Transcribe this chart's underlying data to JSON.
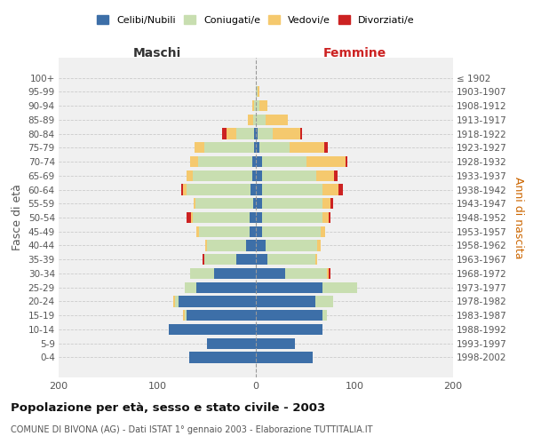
{
  "age_groups": [
    "0-4",
    "5-9",
    "10-14",
    "15-19",
    "20-24",
    "25-29",
    "30-34",
    "35-39",
    "40-44",
    "45-49",
    "50-54",
    "55-59",
    "60-64",
    "65-69",
    "70-74",
    "75-79",
    "80-84",
    "85-89",
    "90-94",
    "95-99",
    "100+"
  ],
  "birth_years": [
    "1998-2002",
    "1993-1997",
    "1988-1992",
    "1983-1987",
    "1978-1982",
    "1973-1977",
    "1968-1972",
    "1963-1967",
    "1958-1962",
    "1953-1957",
    "1948-1952",
    "1943-1947",
    "1938-1942",
    "1933-1937",
    "1928-1932",
    "1923-1927",
    "1918-1922",
    "1913-1917",
    "1908-1912",
    "1903-1907",
    "≤ 1902"
  ],
  "male": {
    "celibi": [
      68,
      50,
      88,
      70,
      78,
      60,
      42,
      20,
      10,
      6,
      6,
      3,
      5,
      4,
      4,
      2,
      2,
      0,
      0,
      0,
      0
    ],
    "coniugati": [
      0,
      0,
      0,
      2,
      4,
      12,
      25,
      32,
      40,
      52,
      58,
      58,
      65,
      60,
      55,
      50,
      18,
      3,
      2,
      0,
      0
    ],
    "vedovi": [
      0,
      0,
      0,
      2,
      2,
      0,
      0,
      0,
      1,
      2,
      2,
      2,
      4,
      6,
      8,
      10,
      10,
      5,
      2,
      0,
      0
    ],
    "divorziati": [
      0,
      0,
      0,
      0,
      0,
      0,
      0,
      2,
      0,
      0,
      4,
      0,
      2,
      0,
      0,
      0,
      4,
      0,
      0,
      0,
      0
    ]
  },
  "female": {
    "nubili": [
      58,
      40,
      68,
      68,
      60,
      68,
      30,
      12,
      10,
      6,
      6,
      6,
      6,
      6,
      6,
      4,
      2,
      0,
      0,
      0,
      0
    ],
    "coniugate": [
      0,
      0,
      0,
      4,
      18,
      35,
      42,
      48,
      52,
      60,
      62,
      62,
      62,
      55,
      45,
      30,
      15,
      10,
      4,
      2,
      0
    ],
    "vedove": [
      0,
      0,
      0,
      0,
      0,
      0,
      2,
      2,
      4,
      4,
      6,
      8,
      16,
      18,
      40,
      35,
      28,
      22,
      8,
      2,
      0
    ],
    "divorziate": [
      0,
      0,
      0,
      0,
      0,
      0,
      2,
      0,
      0,
      0,
      2,
      2,
      4,
      4,
      2,
      4,
      2,
      0,
      0,
      0,
      0
    ]
  },
  "colors": {
    "celibi": "#3d6fa8",
    "coniugati": "#c8deb0",
    "vedovi": "#f5c96e",
    "divorziati": "#cc2222"
  },
  "xlim": 200,
  "title": "Popolazione per età, sesso e stato civile - 2003",
  "subtitle": "COMUNE DI BIVONA (AG) - Dati ISTAT 1° gennaio 2003 - Elaborazione TUTTITALIA.IT",
  "ylabel_left": "Fasce di età",
  "ylabel_right": "Anni di nascita",
  "xlabel_left": "Maschi",
  "xlabel_right": "Femmine",
  "legend_labels": [
    "Celibi/Nubili",
    "Coniugati/e",
    "Vedovi/e",
    "Divorziati/e"
  ],
  "bg_color": "#ffffff",
  "plot_bg": "#f0f0f0",
  "grid_color": "#cccccc"
}
